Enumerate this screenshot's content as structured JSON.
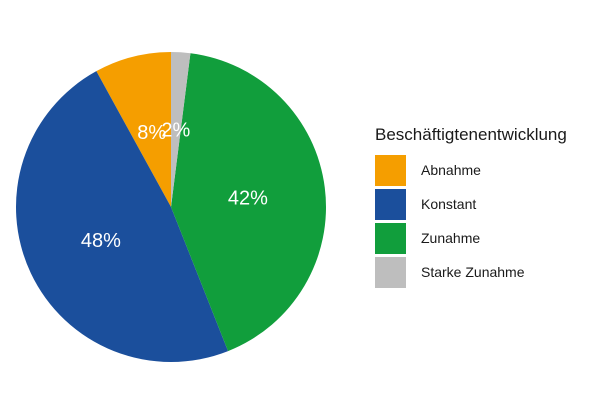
{
  "chart_data": {
    "type": "pie",
    "title": "",
    "legend_title": "Beschäftigtenentwicklung",
    "legend_position": "right",
    "categories": [
      "Abnahme",
      "Konstant",
      "Zunahme",
      "Starke Zunahme"
    ],
    "values": [
      8,
      48,
      42,
      2
    ],
    "labels": [
      "8%",
      "48%",
      "42%",
      "2%"
    ],
    "colors": [
      "#F59E00",
      "#1B4F9C",
      "#119E3C",
      "#BEBEBE"
    ],
    "direction": "counterclockwise from top"
  }
}
